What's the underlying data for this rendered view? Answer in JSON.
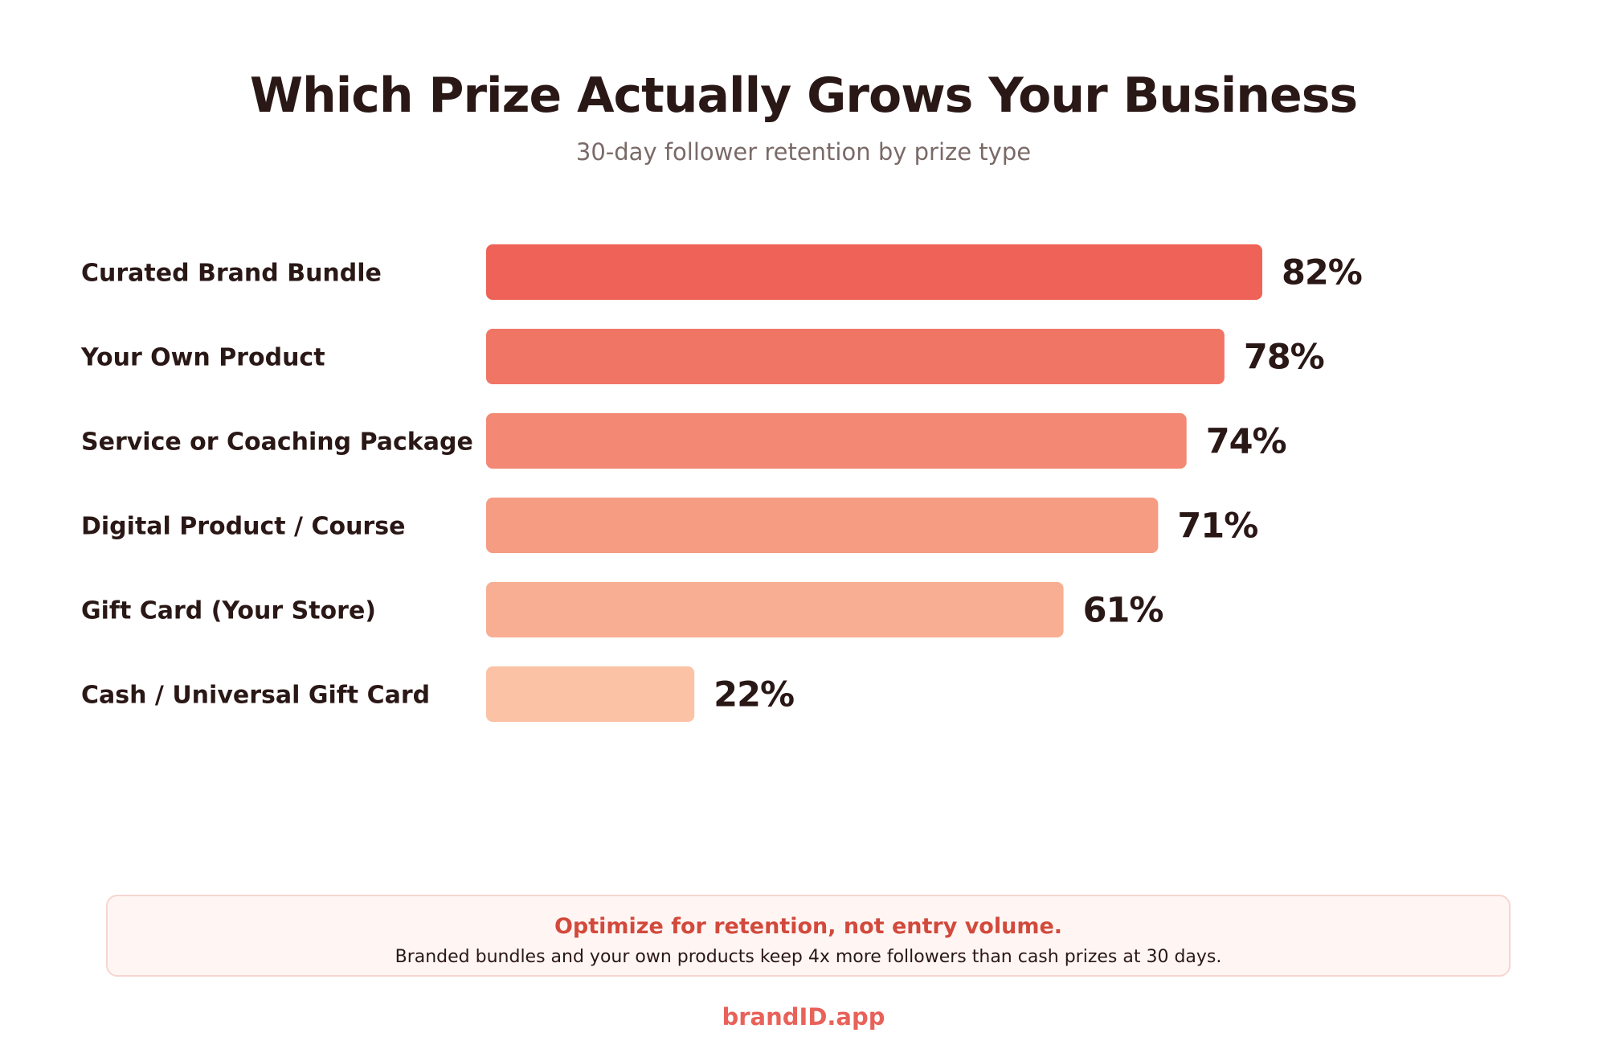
{
  "chart_data": {
    "type": "bar",
    "orientation": "horizontal",
    "title": "Which Prize Actually Grows Your Business",
    "subtitle": "30-day follower retention by prize type",
    "categories": [
      "Curated Brand Bundle",
      "Your Own Product",
      "Service or Coaching Package",
      "Digital Product / Course",
      "Gift Card (Your Store)",
      "Cash / Universal Gift Card"
    ],
    "values": [
      82,
      78,
      74,
      71,
      61,
      22
    ],
    "value_labels": [
      "82%",
      "78%",
      "74%",
      "71%",
      "61%",
      "22%"
    ],
    "unit": "%",
    "xlim": [
      0,
      100
    ],
    "grid": false,
    "legend": "none",
    "bar_colors": [
      "#ee6257",
      "#f07565",
      "#f38874",
      "#f69c82",
      "#f8ae93",
      "#fcc2a5"
    ]
  },
  "callout": {
    "headline": "Optimize for retention, not entry volume.",
    "body": "Branded bundles and your own products keep 4x more followers than cash prizes at 30 days."
  },
  "footer": {
    "brand": "brandID.app"
  },
  "colors": {
    "text_dark": "#2a1816",
    "subtitle": "#7a6a67",
    "accent": "#d24a3c",
    "brand": "#e8625a",
    "callout_bg": "#fff6f4",
    "callout_border": "#f7d6d0"
  }
}
